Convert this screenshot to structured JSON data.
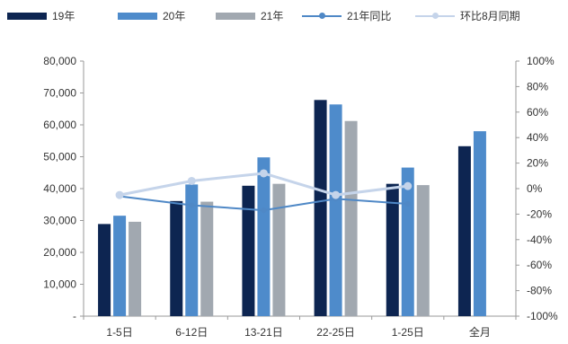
{
  "chart_data": {
    "type": "bar",
    "categories": [
      "1-5日",
      "6-12日",
      "13-21日",
      "22-25日",
      "1-25日",
      "全月"
    ],
    "series": [
      {
        "name": "19年",
        "type": "bar",
        "axis": "left",
        "color": "#0d2551",
        "values": [
          28900,
          36100,
          40900,
          67800,
          41500,
          53300
        ]
      },
      {
        "name": "20年",
        "type": "bar",
        "axis": "left",
        "color": "#4e8bcb",
        "values": [
          31500,
          41300,
          49800,
          66400,
          46600,
          58000
        ]
      },
      {
        "name": "21年",
        "type": "bar",
        "axis": "left",
        "color": "#a1a8b0",
        "values": [
          29600,
          35900,
          41500,
          61200,
          41100,
          null
        ]
      },
      {
        "name": "21年同比",
        "type": "line",
        "axis": "right",
        "color": "#4f88c6",
        "values": [
          -6,
          -13,
          -17,
          -8,
          -12,
          null
        ]
      },
      {
        "name": "环比8月同期",
        "type": "line",
        "axis": "right",
        "color": "#c5d4ea",
        "values": [
          -5,
          6,
          12,
          -5,
          2,
          null
        ]
      }
    ],
    "y_left": {
      "min": 0,
      "max": 80000,
      "step": 10000,
      "tick_labels": [
        "-",
        "10,000",
        "20,000",
        "30,000",
        "40,000",
        "50,000",
        "60,000",
        "70,000",
        "80,000"
      ]
    },
    "y_right": {
      "min": -100,
      "max": 100,
      "step": 20,
      "tick_labels": [
        "-100%",
        "-80%",
        "-60%",
        "-40%",
        "-20%",
        "0%",
        "20%",
        "40%",
        "60%",
        "80%",
        "100%"
      ]
    },
    "grid": false,
    "legend_position": "top"
  }
}
